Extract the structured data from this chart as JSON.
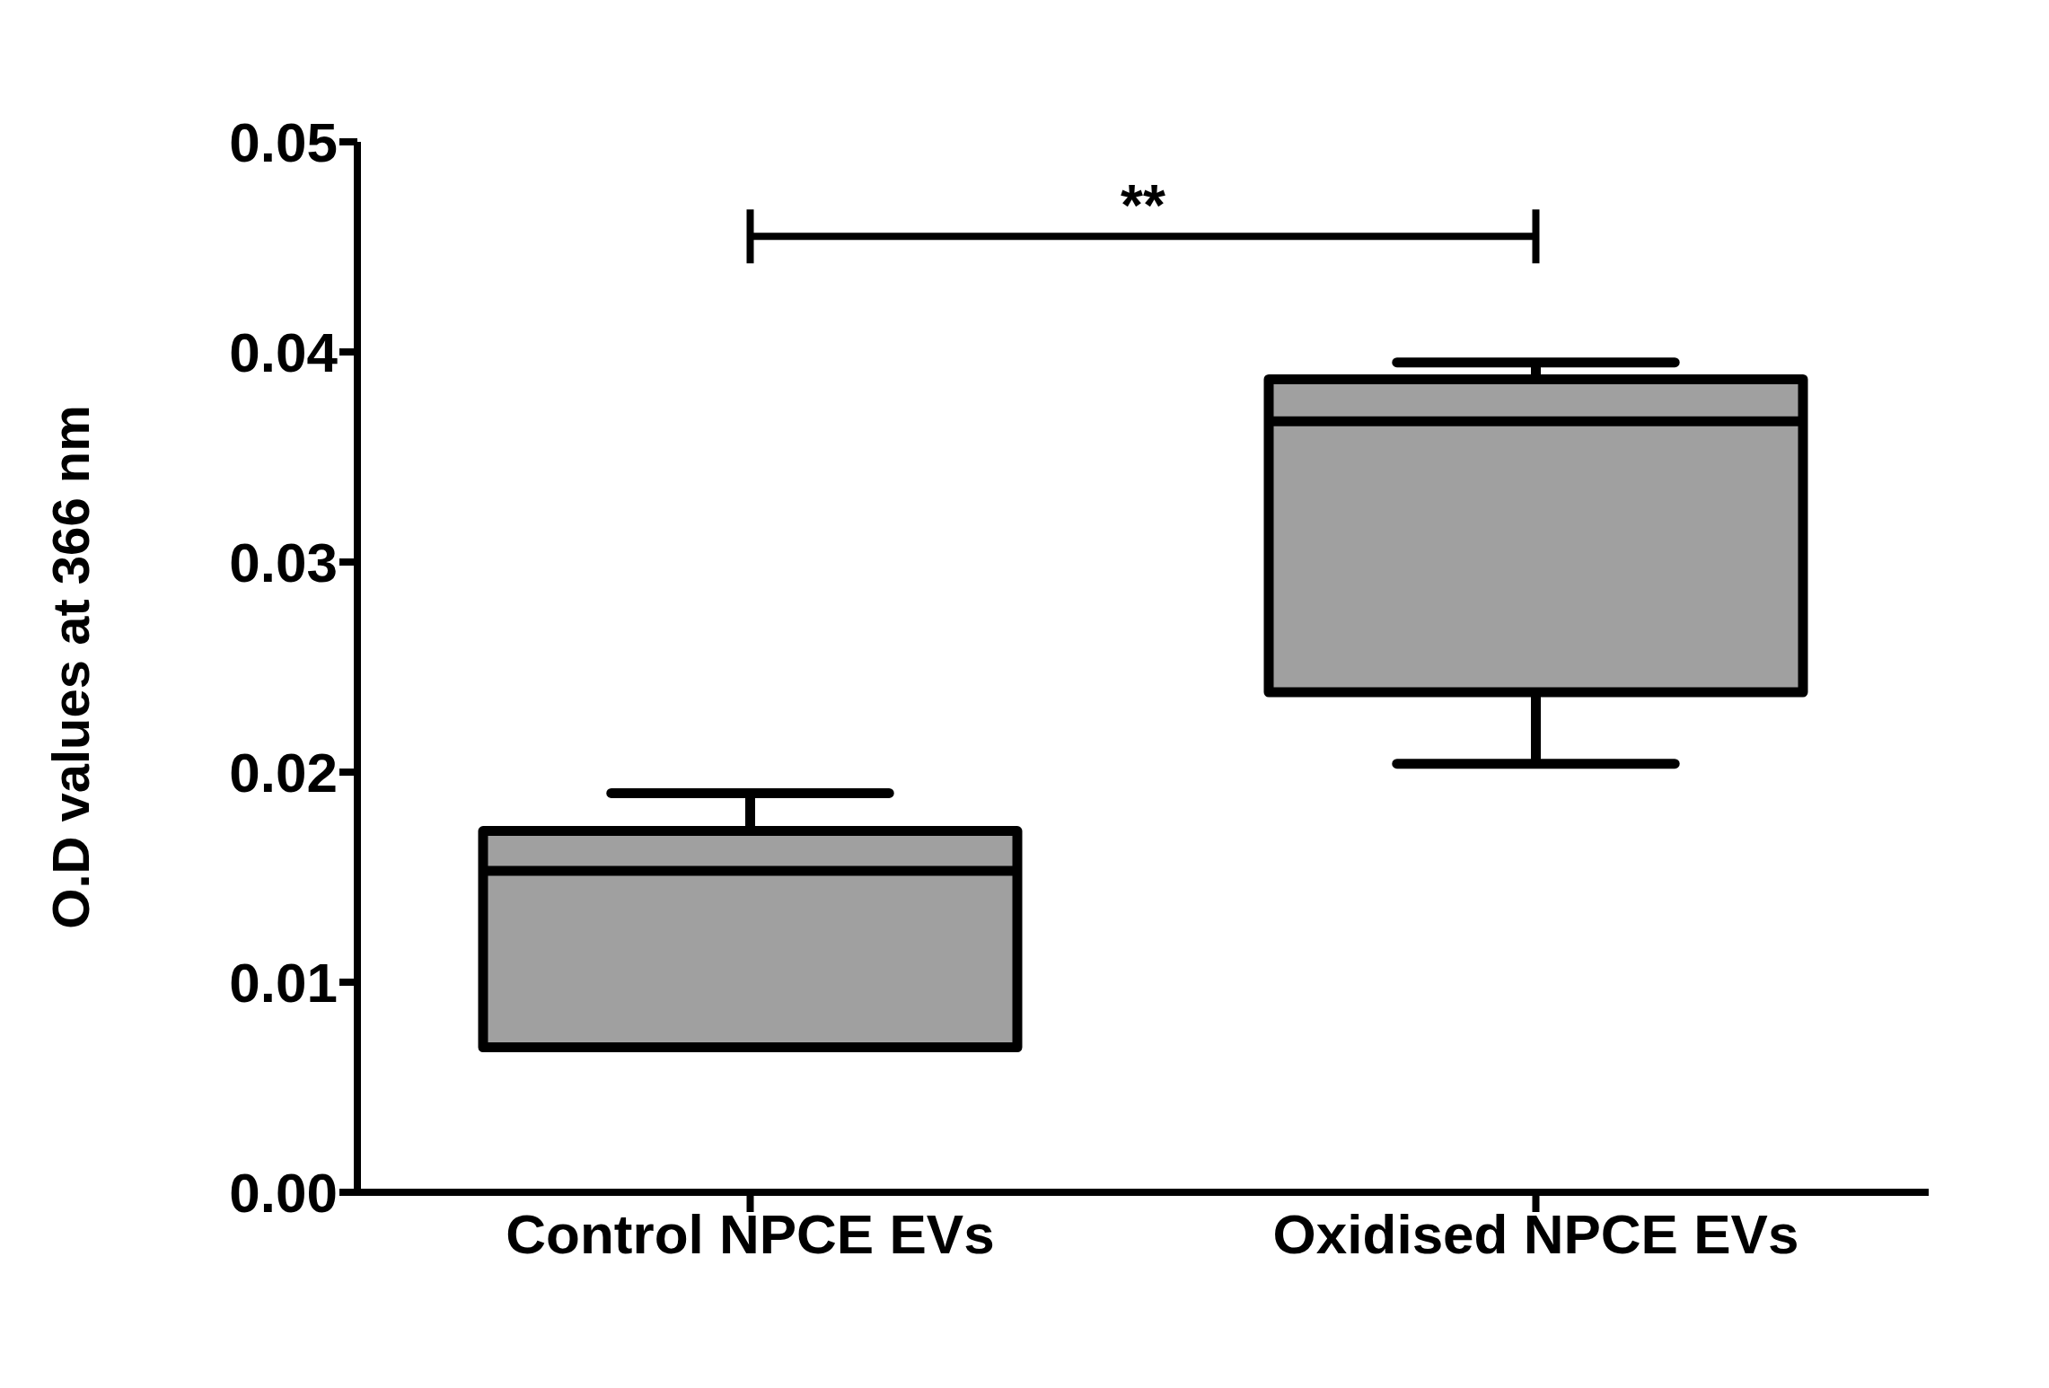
{
  "chart_data": {
    "type": "box",
    "ylabel": "O.D values at 366 nm",
    "categories": [
      "Control NPCE EVs",
      "Oxidised NPCE EVs"
    ],
    "boxes": [
      {
        "low": 0.0069,
        "q1": 0.0069,
        "median": 0.0153,
        "q3": 0.0172,
        "high": 0.019
      },
      {
        "low": 0.0204,
        "q1": 0.0238,
        "median": 0.0367,
        "q3": 0.0387,
        "high": 0.0395
      }
    ],
    "color": "#a0a0a0",
    "ylim": [
      0,
      0.05
    ],
    "yticks": [
      {
        "value": 0,
        "label": "0.00"
      },
      0.01,
      0.02,
      0.03,
      0.04,
      0.05
    ],
    "annotations": [
      "**"
    ]
  }
}
